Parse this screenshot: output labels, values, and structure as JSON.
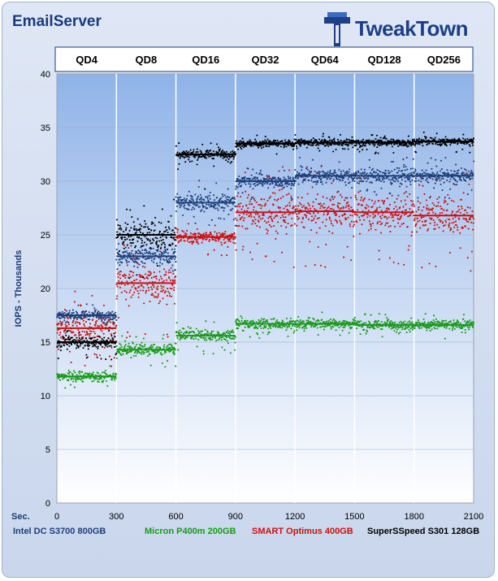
{
  "title": "EmailServer",
  "logo": {
    "text": "TweakTown",
    "icon": "tweaktown-logo-icon"
  },
  "colors": {
    "intel": "#1f3f7a",
    "micron": "#1a9a1a",
    "smart": "#cc1111",
    "superss": "#000000",
    "background_top": "#8fb3e8",
    "background_bottom": "#ffffff"
  },
  "chart_data": {
    "type": "scatter",
    "title": "EmailServer",
    "xlabel": "Sec.",
    "ylabel": "IOPS - Thousands",
    "xlim": [
      0,
      2100
    ],
    "ylim": [
      0,
      40
    ],
    "x_ticks": [
      0,
      300,
      600,
      900,
      1200,
      1500,
      1800,
      2100
    ],
    "y_ticks": [
      0,
      5,
      10,
      15,
      20,
      25,
      30,
      35,
      40
    ],
    "grid": true,
    "legend_position": "bottom",
    "phases": [
      "QD4",
      "QD8",
      "QD16",
      "QD32",
      "QD64",
      "QD128",
      "QD256"
    ],
    "phase_boundaries": [
      0,
      300,
      600,
      900,
      1200,
      1500,
      1800,
      2100
    ],
    "series": [
      {
        "name": "Intel DC S3700 800GB",
        "color": "#1f3f7a",
        "phase_averages": [
          17.5,
          23.0,
          28.0,
          30.0,
          30.5,
          30.5,
          30.5
        ],
        "phase_spread": [
          0.8,
          1.5,
          1.5,
          1.0,
          1.2,
          1.2,
          1.2
        ]
      },
      {
        "name": "Micron P400m 200GB",
        "color": "#1a9a1a",
        "phase_averages": [
          11.8,
          14.3,
          15.6,
          16.7,
          16.7,
          16.6,
          16.6
        ],
        "phase_spread": [
          0.8,
          1.0,
          1.0,
          0.8,
          0.8,
          0.8,
          0.8
        ]
      },
      {
        "name": "SMART Optimus 400GB",
        "color": "#cc1111",
        "phase_averages": [
          16.3,
          20.5,
          24.8,
          27.1,
          27.2,
          27.1,
          26.8
        ],
        "phase_spread": [
          2.5,
          3.0,
          1.0,
          3.0,
          3.0,
          3.0,
          3.0
        ]
      },
      {
        "name": "SuperSSpeed S301 128GB",
        "color": "#000000",
        "phase_averages": [
          15.0,
          25.0,
          32.5,
          33.5,
          33.6,
          33.6,
          33.7
        ],
        "phase_spread": [
          1.0,
          2.5,
          0.8,
          0.6,
          0.6,
          0.6,
          0.6
        ]
      }
    ]
  }
}
